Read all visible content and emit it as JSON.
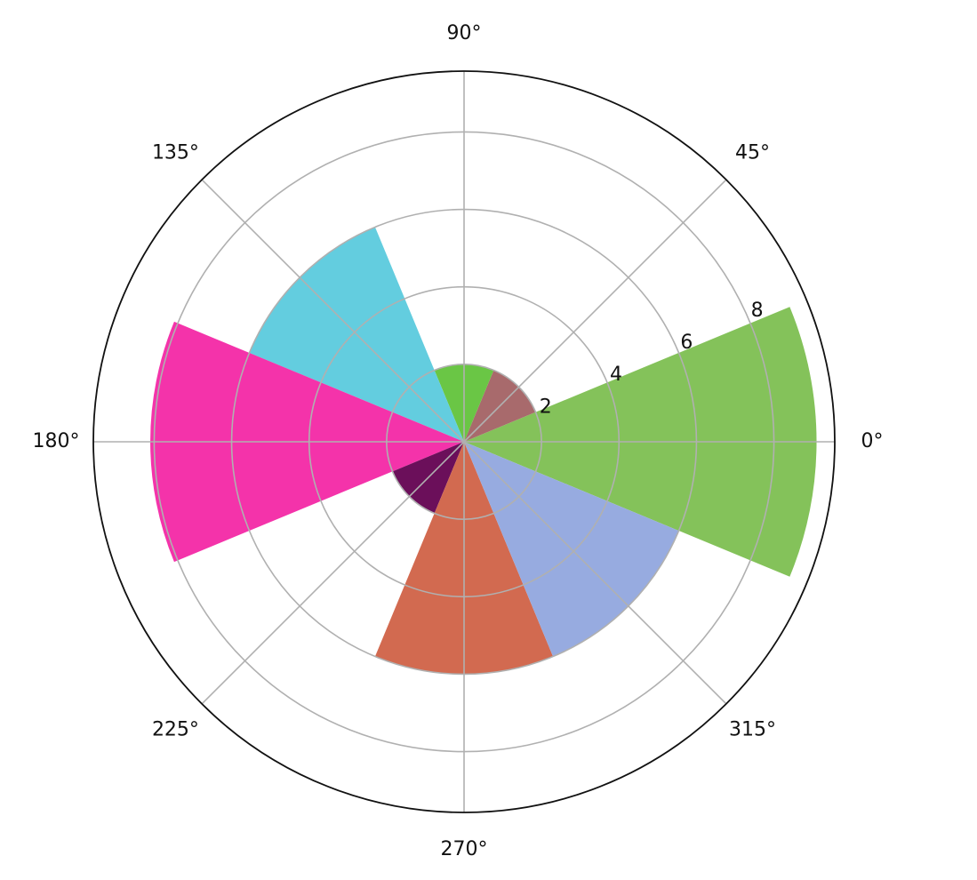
{
  "chart_data": {
    "type": "polar_bar",
    "x": [
      0,
      45,
      90,
      135,
      180,
      225,
      270,
      315
    ],
    "values": [
      9.1,
      2,
      2,
      6,
      8.1,
      2,
      6,
      6
    ],
    "colors": [
      "#84c25a",
      "#a86a6c",
      "#6ac645",
      "#63cddf",
      "#f433aa",
      "#6b0f5a",
      "#d26a50",
      "#97abe0"
    ],
    "xlim": [
      0,
      360
    ],
    "xticks": [
      {
        "value": 0,
        "label": "0°"
      },
      {
        "value": 45,
        "label": "45°"
      },
      {
        "value": 90,
        "label": "90°"
      },
      {
        "value": 135,
        "label": "135°"
      },
      {
        "value": 180,
        "label": "180°"
      },
      {
        "value": 225,
        "label": "225°"
      },
      {
        "value": 270,
        "label": "270°"
      },
      {
        "value": 315,
        "label": "315°"
      }
    ],
    "ylim": [
      0,
      9.57
    ],
    "yticks": [
      2,
      4,
      6,
      8
    ],
    "grid": true
  }
}
